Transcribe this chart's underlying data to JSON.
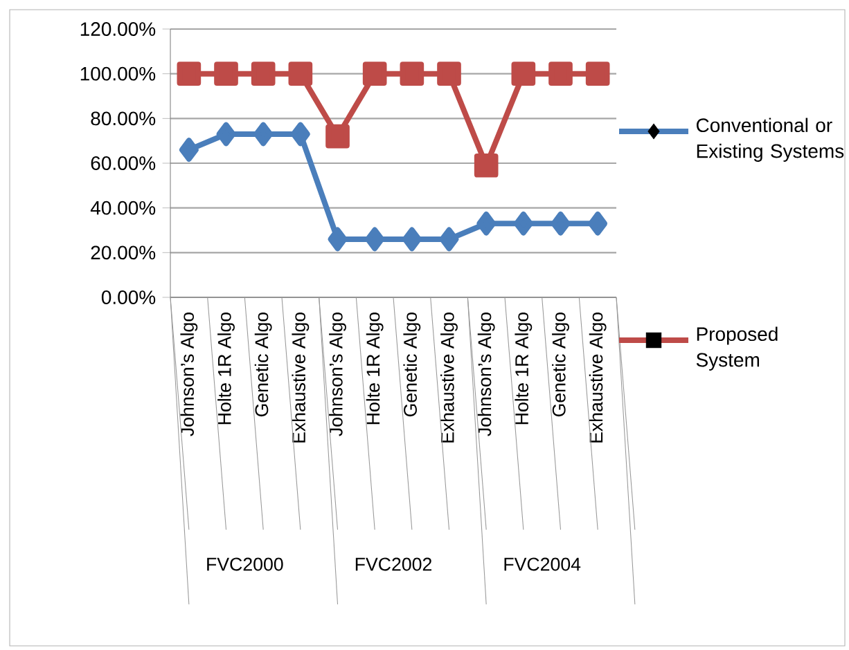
{
  "chart_data": {
    "type": "line",
    "categories": [
      "Johnson’s Algo",
      "Holte 1R Algo",
      "Genetic Algo",
      "Exhaustive Algo",
      "Johnson’s Algo",
      "Holte 1R Algo",
      "Genetic Algo",
      "Exhaustive Algo",
      "Johnson’s Algo",
      "Holte 1R Algo",
      "Genetic Algo",
      "Exhaustive Algo"
    ],
    "series": [
      {
        "name": "Conventional or Existing Systems",
        "color": "#4a7ebb",
        "marker": "diamond",
        "values": [
          66,
          73,
          73,
          73,
          26,
          26,
          26,
          26,
          33,
          33,
          33,
          33
        ]
      },
      {
        "name": "Proposed System",
        "color": "#be4b48",
        "marker": "square",
        "values": [
          100,
          100,
          100,
          100,
          72,
          100,
          100,
          100,
          59,
          100,
          100,
          100
        ]
      }
    ],
    "annotations": [
      "FVC2000",
      "FVC2002",
      "FVC2004"
    ],
    "ylim": [
      0,
      120
    ],
    "yticks": [
      {
        "value": 0,
        "label": "0.00%"
      },
      {
        "value": 20,
        "label": "20.00%"
      },
      {
        "value": 40,
        "label": "40.00%"
      },
      {
        "value": 60,
        "label": "60.00%"
      },
      {
        "value": 80,
        "label": "80.00%"
      },
      {
        "value": 100,
        "label": "100.00%"
      },
      {
        "value": 120,
        "label": "120.00%"
      }
    ],
    "grid": "y",
    "legend": "right"
  }
}
